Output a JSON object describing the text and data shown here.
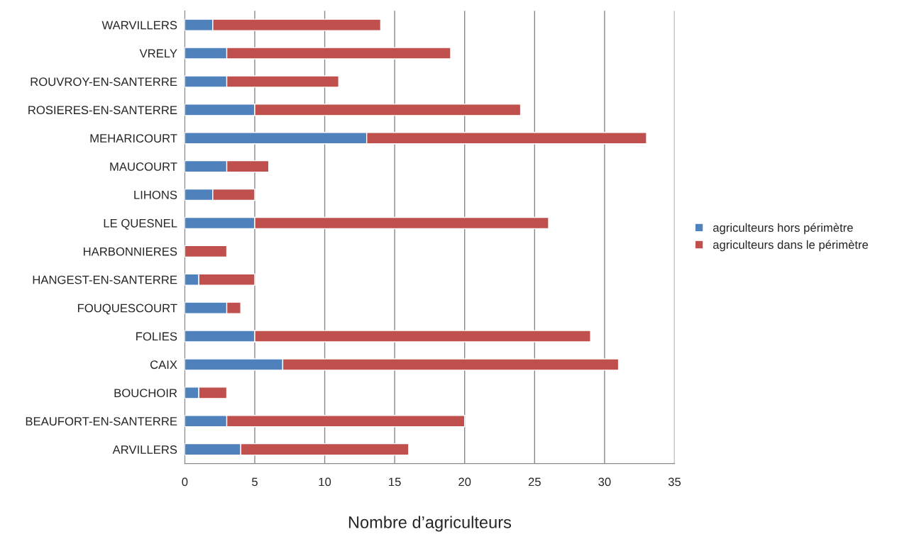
{
  "chart_data": {
    "type": "bar",
    "orientation": "horizontal",
    "stacked": true,
    "xlabel": "Nombre d’agriculteurs",
    "categories": [
      "WARVILLERS",
      "VRELY",
      "ROUVROY-EN-SANTERRE",
      "ROSIERES-EN-SANTERRE",
      "MEHARICOURT",
      "MAUCOURT",
      "LIHONS",
      "LE QUESNEL",
      "HARBONNIERES",
      "HANGEST-EN-SANTERRE",
      "FOUQUESCOURT",
      "FOLIES",
      "CAIX",
      "BOUCHOIR",
      "BEAUFORT-EN-SANTERRE",
      "ARVILLERS"
    ],
    "series": [
      {
        "name": "agriculteurs hors périmètre",
        "color": "#4f81bd",
        "values": [
          2,
          3,
          3,
          5,
          13,
          3,
          2,
          5,
          0,
          1,
          3,
          5,
          7,
          1,
          3,
          4
        ]
      },
      {
        "name": "agriculteurs dans le périmètre",
        "color": "#c0504d",
        "values": [
          12,
          16,
          8,
          19,
          20,
          3,
          3,
          21,
          3,
          4,
          1,
          24,
          24,
          2,
          17,
          12
        ]
      }
    ],
    "xlim": [
      0,
      35
    ],
    "xticks": [
      0,
      5,
      10,
      15,
      20,
      25,
      30,
      35
    ],
    "grid": "x",
    "legend": "right"
  }
}
